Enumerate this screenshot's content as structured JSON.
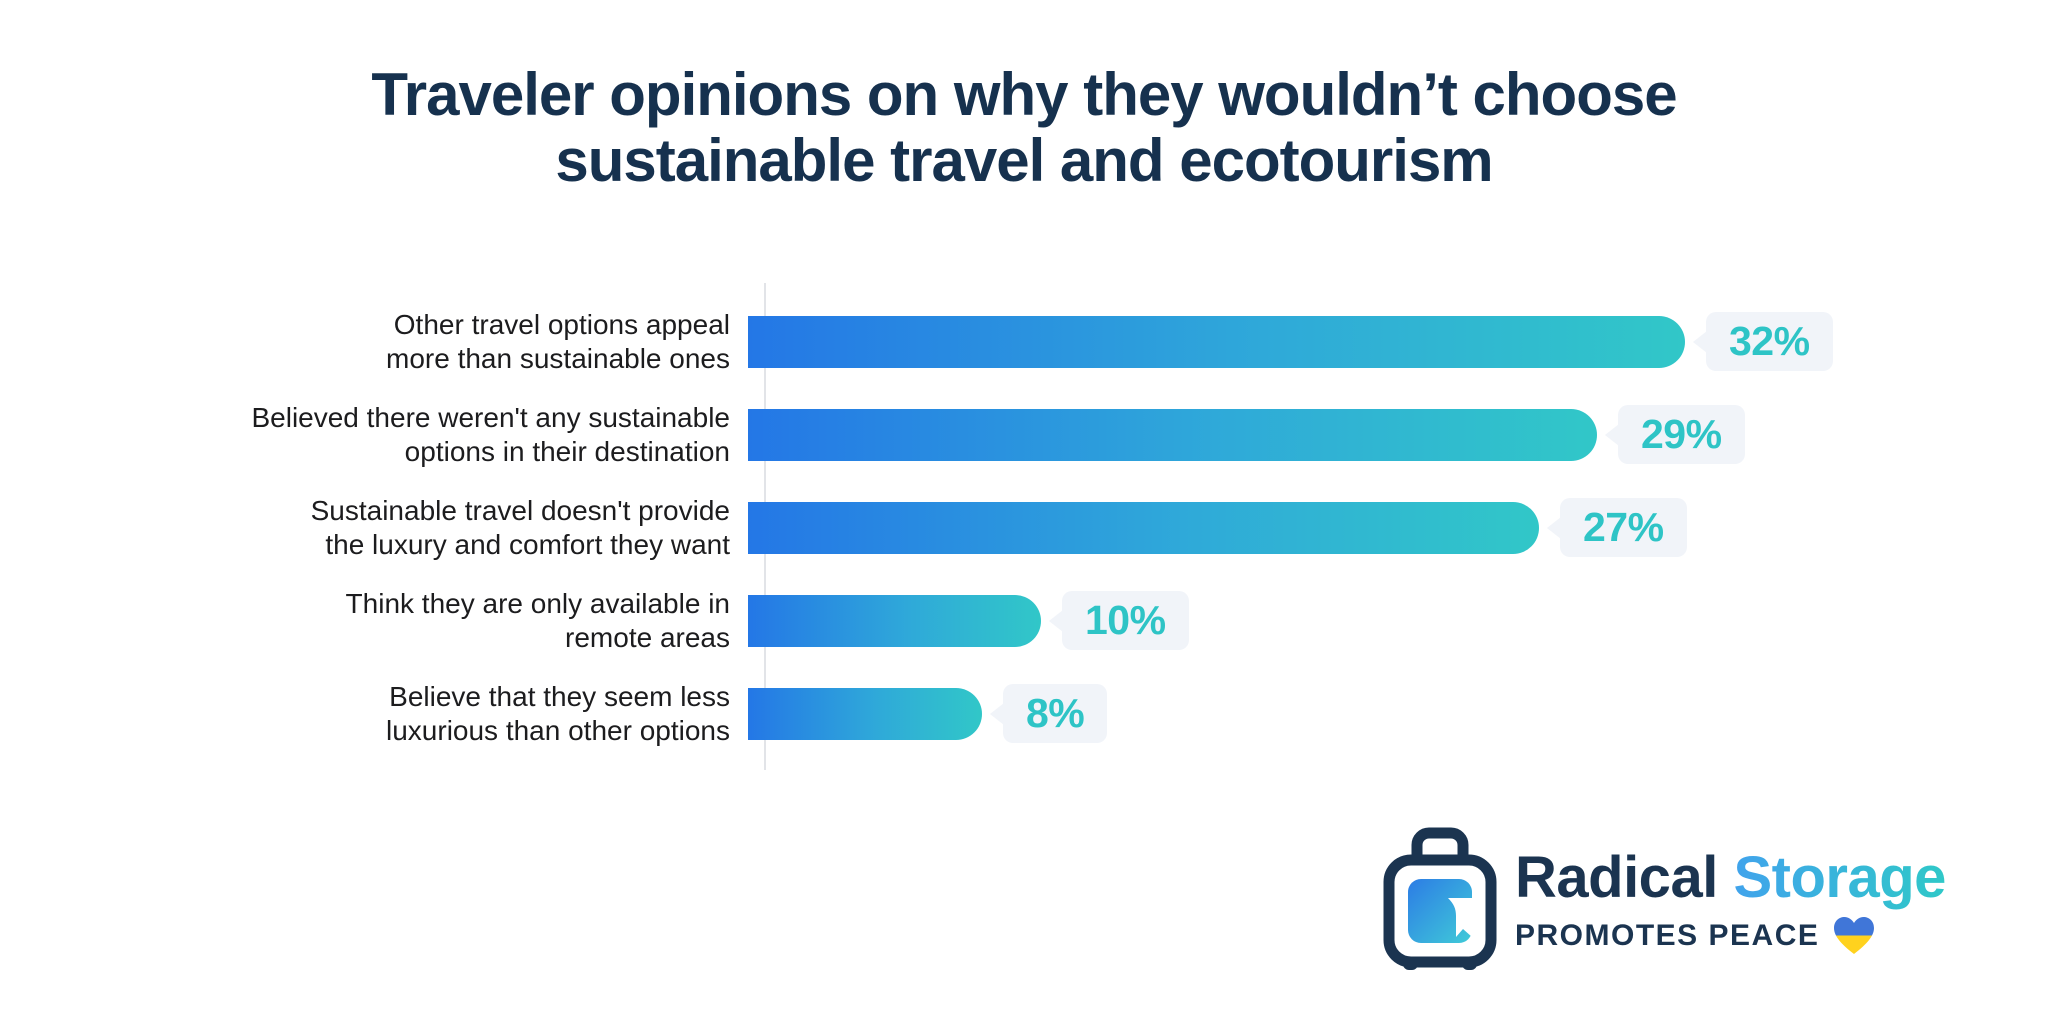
{
  "title": {
    "line1": "Traveler opinions on why they wouldn’t choose",
    "line2": "sustainable travel and ecotourism"
  },
  "chart_data": {
    "type": "bar",
    "orientation": "horizontal",
    "title": "Traveler opinions on why they wouldn’t choose sustainable travel and ecotourism",
    "categories": [
      "Other travel options appeal more than sustainable ones",
      "Believed there weren't any sustainable options in their destination",
      "Sustainable travel doesn't provide the luxury and comfort they want",
      "Think they are only available in remote areas",
      "Believe that they seem less luxurious than other options"
    ],
    "categories_display": [
      "Other travel options appeal\nmore than sustainable ones",
      "Believed there weren't any sustainable\noptions in their destination",
      "Sustainable travel doesn't provide\nthe luxury and comfort they want",
      "Think they are only available in\nremote areas",
      "Believe that they seem less\nluxurious than other options"
    ],
    "values": [
      32,
      29,
      27,
      10,
      8
    ],
    "value_labels": [
      "32%",
      "29%",
      "27%",
      "10%",
      "8%"
    ],
    "xlabel": "",
    "ylabel": "",
    "xlim": [
      0,
      34
    ],
    "grid": false,
    "legend": false,
    "bar_gradient_start": "#2477E6",
    "bar_gradient_end": "#31C7C8",
    "value_label_color": "#2EC4C6",
    "value_bubble_bg": "#F1F4F9"
  },
  "footer": {
    "brand_primary": "Radical",
    "brand_secondary": "Storage",
    "tagline": "PROMOTES PEACE",
    "heart_icon": "ukraine-heart-icon",
    "suitcase_icon": "luggage-icon"
  },
  "colors": {
    "title": "#16314E",
    "label_text": "#1C1C1E",
    "axis_line": "#E2E4E8",
    "brand_navy": "#1B3450",
    "brand_blue": "#41A3EC",
    "brand_teal": "#2FC8C8",
    "heart_blue": "#4076D8",
    "heart_yellow": "#FFD21E"
  }
}
